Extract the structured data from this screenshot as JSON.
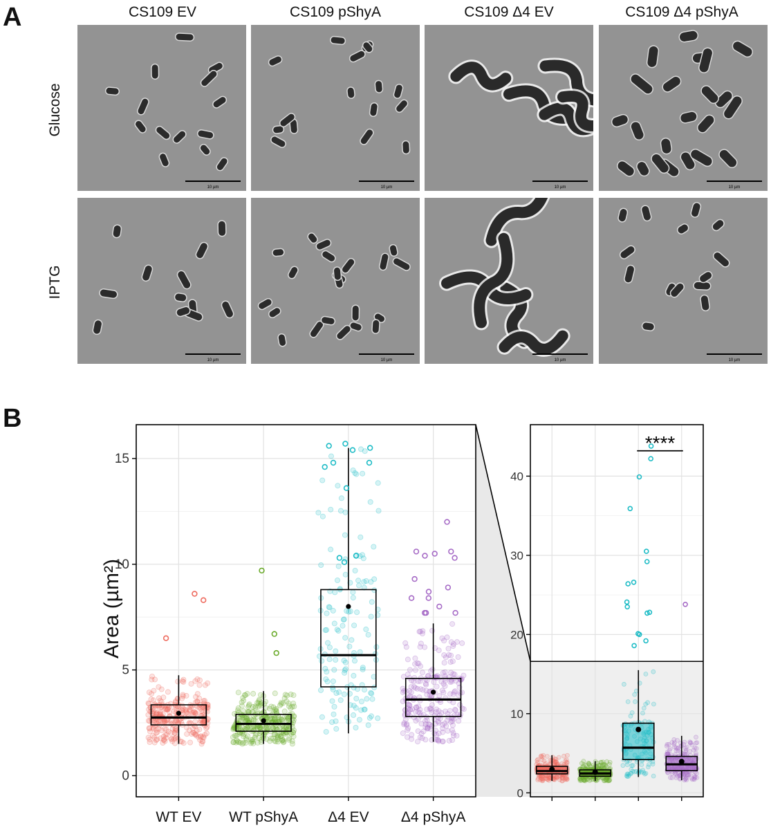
{
  "panel_a": {
    "letter": "A",
    "columns": [
      "CS109 EV",
      "CS109 pShyA",
      "CS109 Δ4 EV",
      "CS109 Δ4 pShyA"
    ],
    "rows": [
      "Glucose",
      "IPTG"
    ],
    "scale_bar_label": "10 µm"
  },
  "panel_b": {
    "letter": "B",
    "ylabel": "Area (µm²)",
    "significance": "****"
  },
  "chart_data": [
    {
      "type": "box",
      "categories": [
        "WT EV",
        "WT pShyA",
        "Δ4 EV",
        "Δ4 pShyA"
      ],
      "ylim": [
        -1,
        16.6
      ],
      "yticks": [
        0,
        5,
        10,
        15
      ],
      "grid": true,
      "ylabel": "Area (µm²)",
      "colors": [
        "#ee6a5e",
        "#6aaa2a",
        "#1ebcc6",
        "#a66bc6"
      ],
      "boxes": [
        {
          "q1": 2.4,
          "median": 2.75,
          "q3": 3.35,
          "whisker_low": 1.5,
          "whisker_high": 4.75,
          "mean": 2.95
        },
        {
          "q1": 2.1,
          "median": 2.45,
          "q3": 2.9,
          "whisker_low": 1.5,
          "whisker_high": 4.0,
          "mean": 2.6
        },
        {
          "q1": 4.2,
          "median": 5.7,
          "q3": 8.8,
          "whisker_low": 2.0,
          "whisker_high": 15.5,
          "mean": 8.0
        },
        {
          "q1": 2.8,
          "median": 3.6,
          "q3": 4.6,
          "whisker_low": 1.6,
          "whisker_high": 7.2,
          "mean": 3.95
        }
      ],
      "outliers": [
        [
          8.6,
          8.3,
          6.5
        ],
        [
          9.7,
          6.7,
          5.8
        ],
        [
          15.6,
          15.7,
          15.4,
          15.5,
          14.8,
          14.8,
          14.6,
          13.6,
          10.4,
          10.3,
          10.1
        ],
        [
          12.0,
          10.6,
          10.5,
          10.3,
          10.4,
          10.6,
          9.3,
          8.9,
          8.7,
          8.4,
          8.4,
          8.0,
          7.7,
          7.7,
          7.7
        ]
      ]
    },
    {
      "type": "box",
      "categories": [
        "WT EV",
        "WT pShyA",
        "Δ4 EV",
        "Δ4 pShyA"
      ],
      "ylim": [
        -0.5,
        46.5
      ],
      "yticks": [
        0,
        10,
        20,
        30,
        40
      ],
      "grid": true,
      "zoom_region_y": [
        -0.5,
        16.6
      ],
      "colors": [
        "#ee6a5e",
        "#6aaa2a",
        "#1ebcc6",
        "#a66bc6"
      ],
      "boxes": [
        {
          "q1": 2.4,
          "median": 2.75,
          "q3": 3.35,
          "whisker_low": 1.5,
          "whisker_high": 4.75,
          "mean": 2.95
        },
        {
          "q1": 2.1,
          "median": 2.45,
          "q3": 2.9,
          "whisker_low": 1.5,
          "whisker_high": 4.0,
          "mean": 2.6
        },
        {
          "q1": 4.2,
          "median": 5.7,
          "q3": 8.8,
          "whisker_low": 2.0,
          "whisker_high": 15.5,
          "mean": 8.0
        },
        {
          "q1": 2.8,
          "median": 3.6,
          "q3": 4.6,
          "whisker_low": 1.6,
          "whisker_high": 7.2,
          "mean": 3.95
        }
      ],
      "outliers_high": [
        [],
        [],
        [
          43.8,
          42.2,
          39.9,
          35.9,
          30.5,
          29.2,
          26.6,
          26.4,
          24.1,
          23.5,
          22.8,
          22.7,
          20.1,
          20.0,
          19.2,
          18.6
        ],
        [
          23.8
        ]
      ],
      "significance": {
        "label": "****",
        "y": 43.2,
        "from": 2,
        "to": 3
      }
    }
  ]
}
